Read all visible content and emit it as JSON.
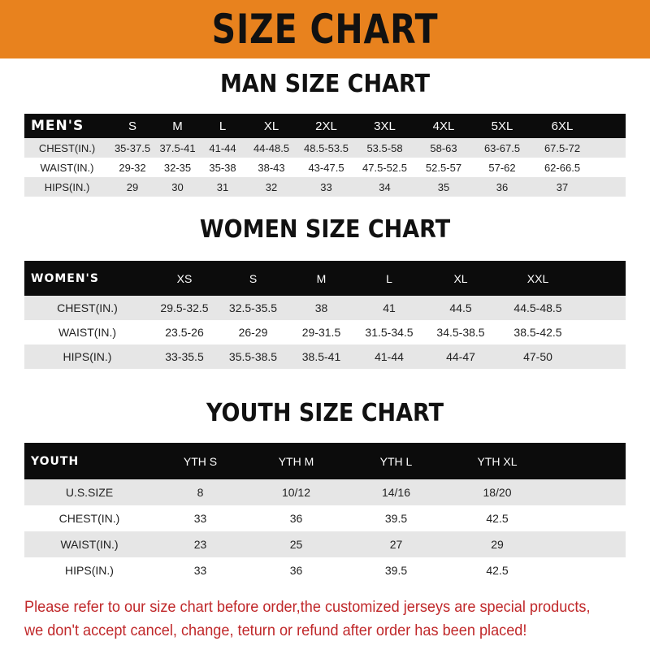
{
  "banner": "SIZE CHART",
  "men": {
    "title": "MAN SIZE CHART",
    "header": "MEN'S",
    "sizes": [
      "S",
      "M",
      "L",
      "XL",
      "2XL",
      "3XL",
      "4XL",
      "5XL",
      "6XL"
    ],
    "rows": [
      {
        "label": "CHEST(IN.)",
        "values": [
          "35-37.5",
          "37.5-41",
          "41-44",
          "44-48.5",
          "48.5-53.5",
          "53.5-58",
          "58-63",
          "63-67.5",
          "67.5-72"
        ]
      },
      {
        "label": "WAIST(IN.)",
        "values": [
          "29-32",
          "32-35",
          "35-38",
          "38-43",
          "43-47.5",
          "47.5-52.5",
          "52.5-57",
          "57-62",
          "62-66.5"
        ]
      },
      {
        "label": "HIPS(IN.)",
        "values": [
          "29",
          "30",
          "31",
          "32",
          "33",
          "34",
          "35",
          "36",
          "37"
        ]
      }
    ]
  },
  "women": {
    "title": "WOMEN SIZE CHART",
    "header": "WOMEN'S",
    "sizes": [
      "XS",
      "S",
      "M",
      "L",
      "XL",
      "XXL"
    ],
    "rows": [
      {
        "label": "CHEST(IN.)",
        "values": [
          "29.5-32.5",
          "32.5-35.5",
          "38",
          "41",
          "44.5",
          "44.5-48.5"
        ]
      },
      {
        "label": "WAIST(IN.)",
        "values": [
          "23.5-26",
          "26-29",
          "29-31.5",
          "31.5-34.5",
          "34.5-38.5",
          "38.5-42.5"
        ]
      },
      {
        "label": "HIPS(IN.)",
        "values": [
          "33-35.5",
          "35.5-38.5",
          "38.5-41",
          "41-44",
          "44-47",
          "47-50"
        ]
      }
    ]
  },
  "youth": {
    "title": "YOUTH SIZE CHART",
    "header": "YOUTH",
    "sizes": [
      "YTH S",
      "YTH M",
      "YTH L",
      "YTH XL"
    ],
    "rows": [
      {
        "label": "U.S.SIZE",
        "values": [
          "8",
          "10/12",
          "14/16",
          "18/20"
        ]
      },
      {
        "label": "CHEST(IN.)",
        "values": [
          "33",
          "36",
          "39.5",
          "42.5"
        ]
      },
      {
        "label": "WAIST(IN.)",
        "values": [
          "23",
          "25",
          "27",
          "29"
        ]
      },
      {
        "label": "HIPS(IN.)",
        "values": [
          "33",
          "36",
          "39.5",
          "42.5"
        ]
      }
    ]
  },
  "footer": [
    "Please refer to our size chart before order,the customized jerseys are special products,",
    "we don't accept cancel, change, teturn or refund after order has been placed!"
  ],
  "colors": {
    "banner": "#e8821e",
    "header_row": "#0c0c0c",
    "stripe": "#e6e6e6",
    "notice": "#c0282a"
  }
}
